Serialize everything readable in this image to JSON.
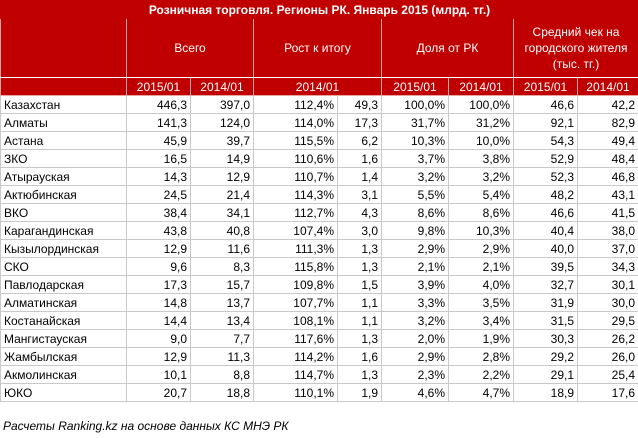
{
  "title": "Розничная торговля. Регионы РК. Январь 2015 (млрд. тг.)",
  "groups": {
    "total": "Всего",
    "growth": "Рост к итогу",
    "share": "Доля от РК",
    "avg_check": "Средний чек на городского жителя (тыс. тг.)"
  },
  "subheaders": [
    "2015/01",
    "2014/01",
    "2014/01",
    "2015/01",
    "2014/01",
    "2015/01",
    "2014/01"
  ],
  "rows": [
    [
      "Казахстан",
      "446,3",
      "397,0",
      "112,4%",
      "49,3",
      "100,0%",
      "100,0%",
      "46,6",
      "42,2"
    ],
    [
      "Алматы",
      "141,3",
      "124,0",
      "114,0%",
      "17,3",
      "31,7%",
      "31,2%",
      "92,1",
      "82,9"
    ],
    [
      "Астана",
      "45,9",
      "39,7",
      "115,5%",
      "6,2",
      "10,3%",
      "10,0%",
      "54,3",
      "49,4"
    ],
    [
      "ЗКО",
      "16,5",
      "14,9",
      "110,6%",
      "1,6",
      "3,7%",
      "3,8%",
      "52,9",
      "48,4"
    ],
    [
      "Атырауская",
      "14,3",
      "12,9",
      "110,7%",
      "1,4",
      "3,2%",
      "3,2%",
      "52,3",
      "46,8"
    ],
    [
      "Актюбинская",
      "24,5",
      "21,4",
      "114,3%",
      "3,1",
      "5,5%",
      "5,4%",
      "48,2",
      "43,1"
    ],
    [
      "ВКО",
      "38,4",
      "34,1",
      "112,7%",
      "4,3",
      "8,6%",
      "8,6%",
      "46,6",
      "41,5"
    ],
    [
      "Карагандинская",
      "43,8",
      "40,8",
      "107,4%",
      "3,0",
      "9,8%",
      "10,3%",
      "40,4",
      "38,0"
    ],
    [
      "Кызылординская",
      "12,9",
      "11,6",
      "111,3%",
      "1,3",
      "2,9%",
      "2,9%",
      "40,0",
      "37,0"
    ],
    [
      "СКО",
      "9,6",
      "8,3",
      "115,8%",
      "1,3",
      "2,1%",
      "2,1%",
      "39,5",
      "34,3"
    ],
    [
      "Павлодарская",
      "17,3",
      "15,7",
      "109,8%",
      "1,5",
      "3,9%",
      "4,0%",
      "32,7",
      "30,1"
    ],
    [
      "Алматинская",
      "14,8",
      "13,7",
      "107,7%",
      "1,1",
      "3,3%",
      "3,5%",
      "31,9",
      "30,0"
    ],
    [
      "Костанайская",
      "14,4",
      "13,4",
      "108,1%",
      "1,1",
      "3,2%",
      "3,4%",
      "31,5",
      "29,5"
    ],
    [
      "Мангистауская",
      "9,0",
      "7,7",
      "117,6%",
      "1,3",
      "2,0%",
      "1,9%",
      "30,3",
      "26,2"
    ],
    [
      "Жамбылская",
      "12,9",
      "11,3",
      "114,2%",
      "1,6",
      "2,9%",
      "2,8%",
      "29,2",
      "26,0"
    ],
    [
      "Акмолинская",
      "10,1",
      "8,8",
      "114,7%",
      "1,3",
      "2,3%",
      "2,2%",
      "29,1",
      "25,4"
    ],
    [
      "ЮКО",
      "20,7",
      "18,8",
      "110,1%",
      "1,9",
      "4,6%",
      "4,7%",
      "18,9",
      "17,6"
    ]
  ],
  "footer": "Расчеты Ranking.kz на основе данных КС МНЭ РК"
}
